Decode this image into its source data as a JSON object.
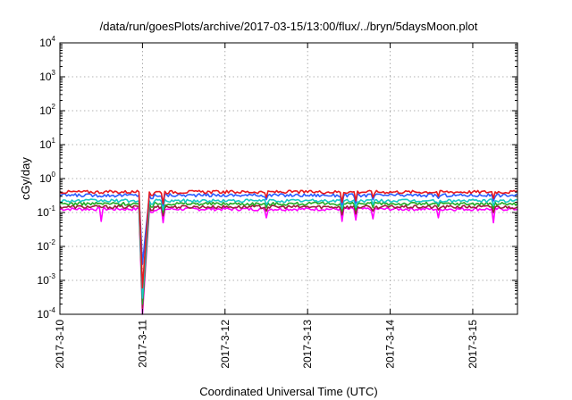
{
  "chart_data": {
    "type": "line",
    "title": "/data/run/goesPlots/archive/2017-03-15/13:00/flux/../bryn/5daysMoon.plot",
    "xlabel": "Coordinated Universal Time (UTC)",
    "ylabel": "cGy/day",
    "yscale": "log",
    "ylim": [
      0.0001,
      10000
    ],
    "xlim": [
      "2017-03-10T00:00",
      "2017-03-15T13:00"
    ],
    "x_ticks": [
      "2017-3-10",
      "2017-3-11",
      "2017-3-12",
      "2017-3-13",
      "2017-3-14",
      "2017-3-15"
    ],
    "y_ticks": [
      {
        "base": "10",
        "exp": "-4"
      },
      {
        "base": "10",
        "exp": "-3"
      },
      {
        "base": "10",
        "exp": "-2"
      },
      {
        "base": "10",
        "exp": "-1"
      },
      {
        "base": "10",
        "exp": "0"
      },
      {
        "base": "10",
        "exp": "1"
      },
      {
        "base": "10",
        "exp": "2"
      },
      {
        "base": "10",
        "exp": "3"
      },
      {
        "base": "10",
        "exp": "4"
      }
    ],
    "grid": true,
    "series": [
      {
        "color": "#e8191f",
        "level": 0.4,
        "dropAt": "2017-03-11T00:00",
        "dropMin": 0.0006,
        "dips": [
          [
            "2017-03-11T06:00",
            0.18
          ],
          [
            "2017-03-12T12:00",
            0.28
          ],
          [
            "2017-03-13T10:00",
            0.2
          ],
          [
            "2017-03-13T14:00",
            0.22
          ],
          [
            "2017-03-13T19:00",
            0.28
          ],
          [
            "2017-03-14T14:00",
            0.3
          ],
          [
            "2017-03-15T06:00",
            0.26
          ]
        ]
      },
      {
        "color": "#2a5cff",
        "level": 0.32,
        "dropAt": "2017-03-11T00:00",
        "dropMin": 0.003,
        "dips": [
          [
            "2017-03-11T06:00",
            0.16
          ],
          [
            "2017-03-12T12:00",
            0.24
          ],
          [
            "2017-03-13T10:00",
            0.17
          ],
          [
            "2017-03-13T14:00",
            0.19
          ],
          [
            "2017-03-13T19:00",
            0.24
          ],
          [
            "2017-03-14T14:00",
            0.26
          ],
          [
            "2017-03-15T06:00",
            0.22
          ]
        ]
      },
      {
        "color": "#18c8c8",
        "level": 0.22,
        "dropAt": "2017-03-11T00:00",
        "dropMin": 0.0003,
        "dips": [
          [
            "2017-03-11T06:00",
            0.12
          ],
          [
            "2017-03-12T12:00",
            0.17
          ],
          [
            "2017-03-13T10:00",
            0.13
          ],
          [
            "2017-03-13T14:00",
            0.14
          ],
          [
            "2017-03-13T19:00",
            0.17
          ],
          [
            "2017-03-14T14:00",
            0.18
          ],
          [
            "2017-03-15T06:00",
            0.16
          ]
        ]
      },
      {
        "color": "#22aa22",
        "level": 0.18,
        "dropAt": "2017-03-11T00:00",
        "dropMin": 0.0002,
        "dips": [
          [
            "2017-03-11T06:00",
            0.1
          ],
          [
            "2017-03-12T12:00",
            0.14
          ],
          [
            "2017-03-13T10:00",
            0.11
          ],
          [
            "2017-03-13T14:00",
            0.12
          ],
          [
            "2017-03-13T19:00",
            0.14
          ],
          [
            "2017-03-14T14:00",
            0.15
          ],
          [
            "2017-03-15T06:00",
            0.13
          ]
        ]
      },
      {
        "color": "#9a1e3c",
        "level": 0.145,
        "dropAt": "2017-03-11T00:00",
        "dropMin": 0.00015,
        "dips": [
          [
            "2017-03-11T06:00",
            0.08
          ],
          [
            "2017-03-12T12:00",
            0.11
          ],
          [
            "2017-03-13T10:00",
            0.085
          ],
          [
            "2017-03-13T14:00",
            0.09
          ],
          [
            "2017-03-13T19:00",
            0.11
          ],
          [
            "2017-03-14T14:00",
            0.12
          ],
          [
            "2017-03-15T06:00",
            0.1
          ]
        ]
      },
      {
        "color": "#ff00ff",
        "level": 0.125,
        "dropAt": "2017-03-11T00:00",
        "dropMin": 0.0001,
        "dips": [
          [
            "2017-03-10T12:00",
            0.055
          ],
          [
            "2017-03-11T06:00",
            0.05
          ],
          [
            "2017-03-12T12:00",
            0.07
          ],
          [
            "2017-03-13T10:00",
            0.055
          ],
          [
            "2017-03-13T14:00",
            0.06
          ],
          [
            "2017-03-13T19:00",
            0.065
          ],
          [
            "2017-03-14T14:00",
            0.07
          ],
          [
            "2017-03-15T06:00",
            0.05
          ]
        ]
      }
    ]
  }
}
